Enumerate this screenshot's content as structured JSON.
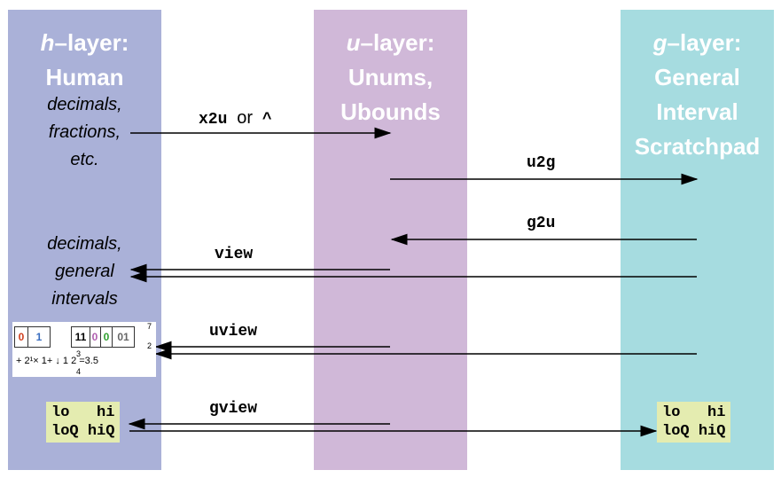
{
  "columns": {
    "h": {
      "head_italic": "h",
      "head_rest": "–layer:",
      "head_line2": "Human",
      "note_top": [
        "decimals,",
        "fractions,",
        "etc."
      ],
      "note_mid": [
        "decimals,",
        "general",
        "intervals"
      ],
      "color": "#aab1d8"
    },
    "u": {
      "head_italic": "u",
      "head_rest": "–layer:",
      "head_line2": "Unums,",
      "head_line3": "Ubounds",
      "color": "#d0b8d8"
    },
    "g": {
      "head_italic": "g",
      "head_rest": "–layer:",
      "head_line2": "General",
      "head_line3": "Interval",
      "head_line4": "Scratchpad",
      "color": "#a6dce0"
    }
  },
  "ops": {
    "x2u": "x2u",
    "or": "or",
    "caret": "^",
    "u2g": "u2g",
    "g2u": "g2u",
    "view": "view",
    "uview": "uview",
    "gview": "gview"
  },
  "gview_box": {
    "row1_lo": "lo",
    "row1_hi": "hi",
    "row2_lo": "loQ",
    "row2_hi": "hiQ"
  },
  "ubit": {
    "cells": [
      "0",
      "1",
      "11",
      "0",
      "0",
      "01"
    ],
    "frac_top": "7",
    "frac_bottom": "2",
    "frac3": "3",
    "frac4": "4",
    "expr": "+ 2¹× 1+  ↓ 1  2  =3.5"
  }
}
